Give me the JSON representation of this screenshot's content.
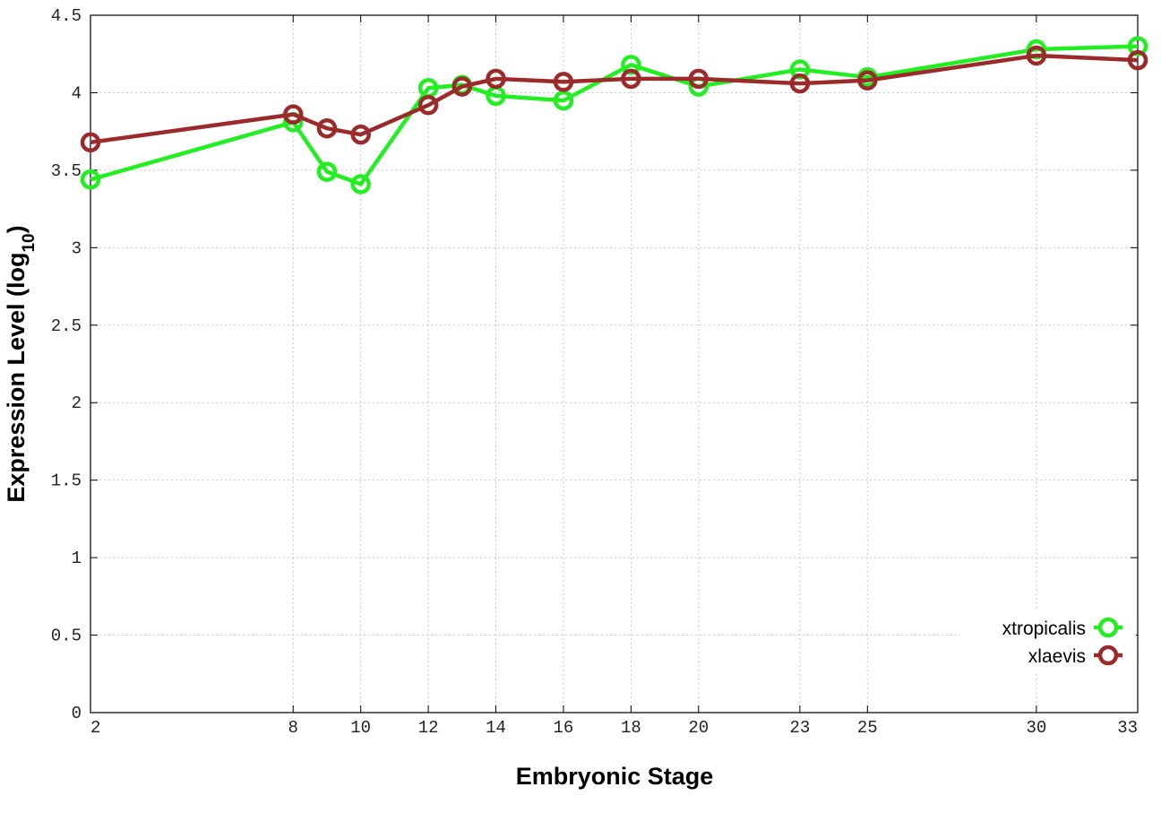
{
  "chart_data": {
    "type": "line",
    "xlabel": "Embryonic Stage",
    "ylabel_main": "Expression Level (log",
    "ylabel_sub": "10",
    "ylabel_close": ")",
    "xlim": [
      2,
      33
    ],
    "ylim": [
      0,
      4.5
    ],
    "x_ticks": [
      2,
      8,
      10,
      12,
      14,
      16,
      18,
      20,
      23,
      25,
      30,
      33
    ],
    "y_ticks": [
      {
        "value": 0,
        "label": "0"
      },
      {
        "value": 0.5,
        "label": "0.5"
      },
      {
        "value": 1,
        "label": "1"
      },
      {
        "value": 1.5,
        "label": "1.5"
      },
      {
        "value": 2,
        "label": "2"
      },
      {
        "value": 2.5,
        "label": "2.5"
      },
      {
        "value": 3,
        "label": "3"
      },
      {
        "value": 3.5,
        "label": "3.5"
      },
      {
        "value": 4,
        "label": "4"
      },
      {
        "value": 4.5,
        "label": "4.5"
      }
    ],
    "grid": true,
    "legend_position": "bottom-right",
    "series": [
      {
        "name": "xtropicalis",
        "color": "#22ee22",
        "x": [
          2,
          8,
          9,
          10,
          12,
          13,
          14,
          16,
          18,
          20,
          23,
          25,
          30,
          33
        ],
        "y": [
          3.44,
          3.81,
          3.49,
          3.41,
          4.03,
          4.05,
          3.98,
          3.95,
          4.18,
          4.04,
          4.15,
          4.1,
          4.28,
          4.3
        ]
      },
      {
        "name": "xlaevis",
        "color": "#9b2a2a",
        "x": [
          2,
          8,
          9,
          10,
          12,
          13,
          14,
          16,
          18,
          20,
          23,
          25,
          30,
          33
        ],
        "y": [
          3.68,
          3.86,
          3.77,
          3.73,
          3.92,
          4.04,
          4.09,
          4.07,
          4.09,
          4.09,
          4.06,
          4.08,
          4.24,
          4.21
        ]
      }
    ]
  }
}
